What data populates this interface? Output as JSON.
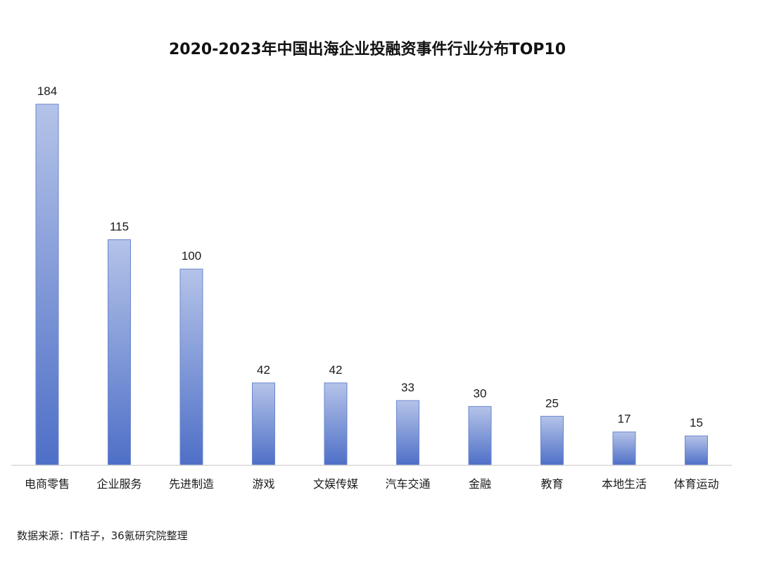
{
  "chart_data": {
    "type": "bar",
    "title": "2020-2023年中国出海企业投融资事件行业分布TOP10",
    "categories": [
      "电商零售",
      "企业服务",
      "先进制造",
      "游戏",
      "文娱传媒",
      "汽车交通",
      "金融",
      "教育",
      "本地生活",
      "体育运动"
    ],
    "values": [
      184,
      115,
      100,
      42,
      42,
      33,
      30,
      25,
      17,
      15
    ],
    "xlabel": "",
    "ylabel": "",
    "ylim": [
      0,
      184
    ],
    "grid": false,
    "legend": "none",
    "bar_color_top": "#b4c3e8",
    "bar_color_bottom": "#4e6fc7",
    "bar_outline": "#6c86cf",
    "axis_color": "#d9d9d9"
  },
  "source_note": "数据来源：IT桔子，36氪研究院整理"
}
